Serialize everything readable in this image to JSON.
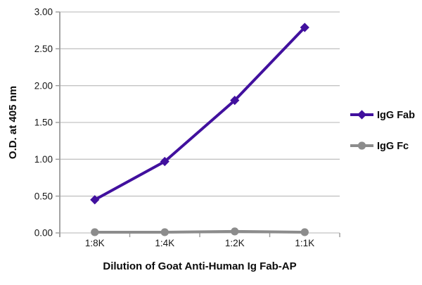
{
  "chart_data": {
    "type": "line",
    "title": "",
    "xlabel": "Dilution of Goat Anti-Human Ig Fab-AP",
    "ylabel": "O.D. at 405 nm",
    "categories": [
      "1:8K",
      "1:4K",
      "1:2K",
      "1:1K"
    ],
    "series": [
      {
        "name": "IgG Fab",
        "values": [
          0.45,
          0.97,
          1.8,
          2.79
        ],
        "color": "#41109E",
        "marker": "diamond"
      },
      {
        "name": "IgG Fc",
        "values": [
          0.01,
          0.01,
          0.02,
          0.01
        ],
        "color": "#8C8C8C",
        "marker": "circle"
      }
    ],
    "ylim": [
      0,
      3
    ],
    "ytick_step": 0.5,
    "ytick_labels": [
      "0.00",
      "0.50",
      "1.00",
      "1.50",
      "2.00",
      "2.50",
      "3.00"
    ],
    "grid": true,
    "legend_position": "right"
  },
  "colors": {
    "background": "#FFFFFF",
    "gridline": "#C4C4C4",
    "axis": "#9A9A9A",
    "tick_text": "#161616",
    "title_text": "#0A0A0A"
  }
}
